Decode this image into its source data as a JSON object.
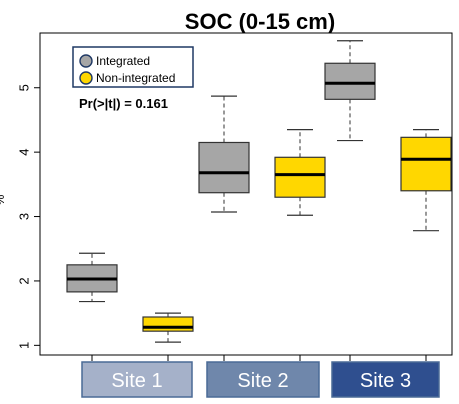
{
  "chart_data": {
    "type": "boxplot",
    "title": "SOC (0-15 cm)",
    "ylabel": "%",
    "ylim": [
      0.85,
      5.85
    ],
    "yticks": [
      1,
      2,
      3,
      4,
      5
    ],
    "legend": {
      "placement": "top-left",
      "entries": [
        {
          "name": "Integrated",
          "color": "#a6a6a6"
        },
        {
          "name": "Non-integrated",
          "color": "#ffd700"
        }
      ]
    },
    "annotation": "Pr(>|t|) = 0.161",
    "categories": [
      "Site 1",
      "Site 2",
      "Site 3"
    ],
    "category_colors": [
      "#a5b1c9",
      "#6f87ab",
      "#2f4f8f"
    ],
    "series": [
      {
        "name": "Integrated",
        "color": "#a6a6a6",
        "boxes": [
          {
            "min": 1.68,
            "q1": 1.83,
            "median": 2.03,
            "q3": 2.25,
            "max": 2.43
          },
          {
            "min": 3.07,
            "q1": 3.37,
            "median": 3.68,
            "q3": 4.15,
            "max": 4.87
          },
          {
            "min": 4.18,
            "q1": 4.82,
            "median": 5.07,
            "q3": 5.38,
            "max": 5.73
          }
        ]
      },
      {
        "name": "Non-integrated",
        "color": "#ffd700",
        "boxes": [
          {
            "min": 1.05,
            "q1": 1.22,
            "median": 1.28,
            "q3": 1.44,
            "max": 1.5
          },
          {
            "min": 3.02,
            "q1": 3.3,
            "median": 3.65,
            "q3": 3.92,
            "max": 4.35
          },
          {
            "min": 2.78,
            "q1": 3.4,
            "median": 3.89,
            "q3": 4.23,
            "max": 4.35
          }
        ]
      }
    ]
  }
}
